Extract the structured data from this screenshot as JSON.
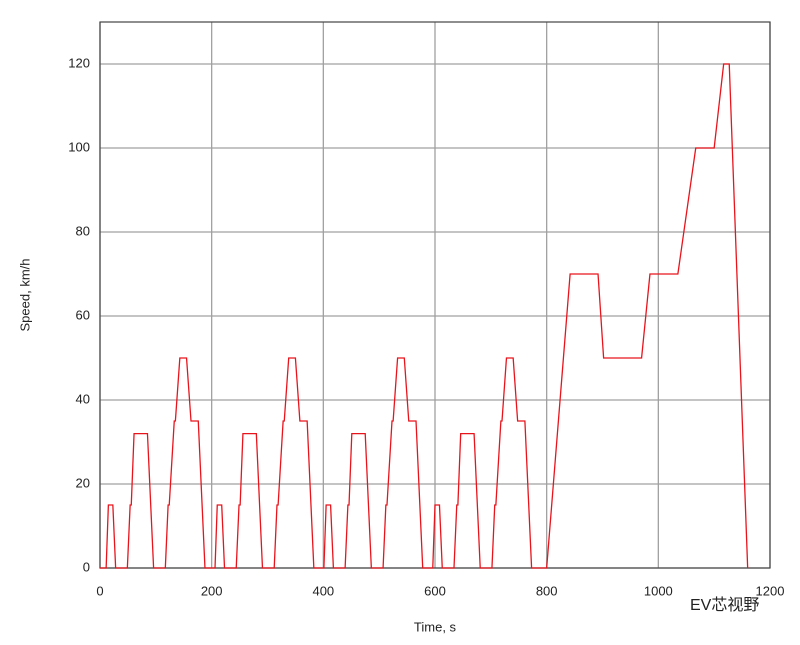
{
  "chart_data": {
    "type": "line",
    "xlabel": "Time, s",
    "ylabel": "Speed, km/h",
    "watermark": "EV芯视野",
    "xlim": [
      0,
      1200
    ],
    "xticks": [
      0,
      200,
      400,
      600,
      800,
      1000,
      1200
    ],
    "ylim": [
      0,
      130
    ],
    "yticks": [
      0,
      20,
      40,
      60,
      80,
      100,
      120
    ],
    "grid": true,
    "series": [
      {
        "name": "Speed",
        "color": "#e8141c",
        "x": [
          0,
          11,
          15,
          23,
          28,
          49,
          54,
          56,
          61,
          85,
          96,
          117,
          122,
          124,
          133,
          135,
          143,
          155,
          163,
          176,
          188,
          195,
          206,
          210,
          218,
          223,
          244,
          249,
          251,
          256,
          280,
          291,
          312,
          317,
          319,
          328,
          330,
          338,
          350,
          358,
          371,
          383,
          390,
          401,
          405,
          413,
          418,
          439,
          444,
          446,
          451,
          475,
          486,
          507,
          512,
          514,
          523,
          525,
          533,
          545,
          553,
          566,
          578,
          585,
          596,
          600,
          608,
          613,
          634,
          639,
          641,
          646,
          670,
          681,
          702,
          707,
          709,
          718,
          720,
          728,
          740,
          748,
          761,
          773,
          780,
          800,
          842,
          892,
          902,
          970,
          985,
          1035,
          1067,
          1100,
          1117,
          1127,
          1160
        ],
        "values": [
          0,
          0,
          15,
          15,
          0,
          0,
          15,
          15,
          32,
          32,
          0,
          0,
          15,
          15,
          35,
          35,
          50,
          50,
          35,
          35,
          0,
          0,
          0,
          15,
          15,
          0,
          0,
          15,
          15,
          32,
          32,
          0,
          0,
          15,
          15,
          35,
          35,
          50,
          50,
          35,
          35,
          0,
          0,
          0,
          15,
          15,
          0,
          0,
          15,
          15,
          32,
          32,
          0,
          0,
          15,
          15,
          35,
          35,
          50,
          50,
          35,
          35,
          0,
          0,
          0,
          15,
          15,
          0,
          0,
          15,
          15,
          32,
          32,
          0,
          0,
          15,
          15,
          35,
          35,
          50,
          50,
          35,
          35,
          0,
          0,
          0,
          70,
          70,
          50,
          50,
          70,
          70,
          100,
          100,
          120,
          120,
          0
        ]
      }
    ]
  }
}
